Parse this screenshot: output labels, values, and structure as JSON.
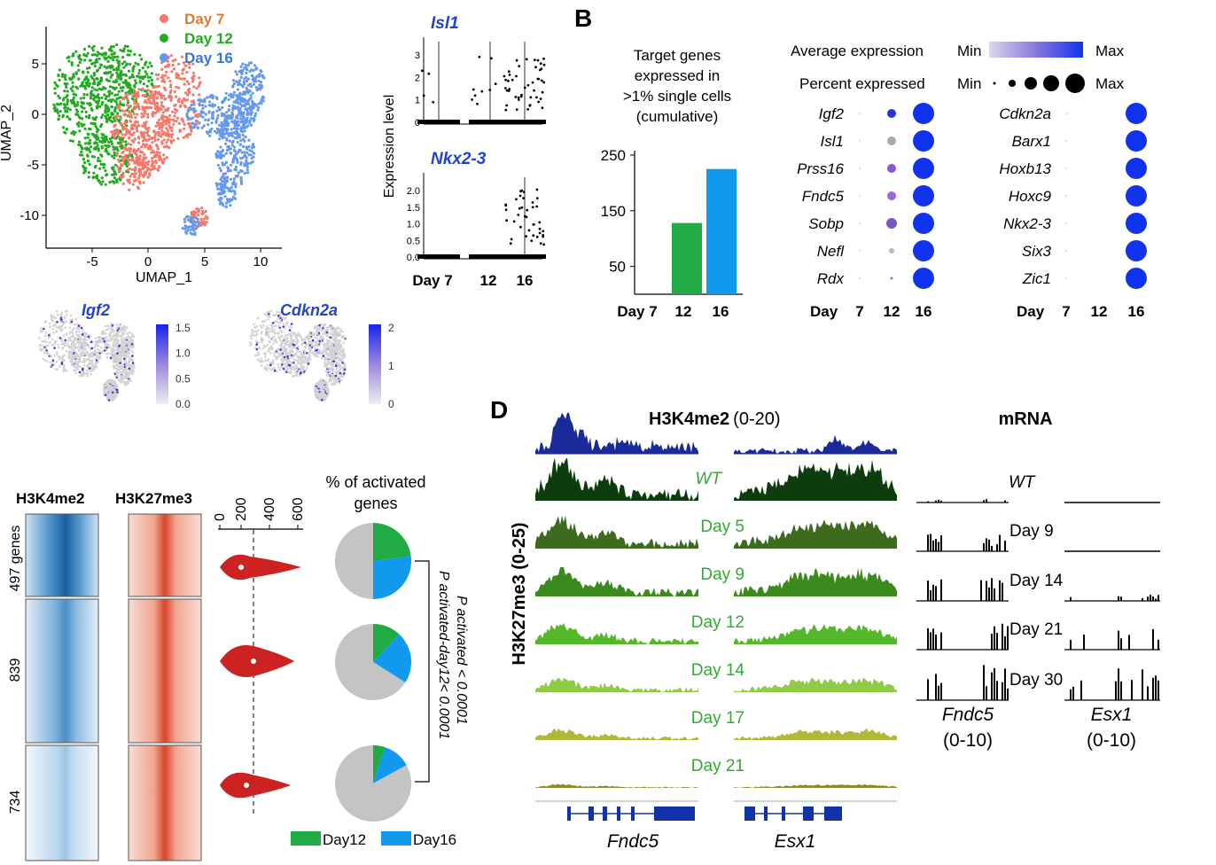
{
  "panels": {
    "b": "B",
    "d": "D"
  },
  "umap": {
    "legend": [
      {
        "label": "Day 7",
        "color": "#f4796b"
      },
      {
        "label": "Day 12",
        "color": "#22aa22"
      },
      {
        "label": "Day 16",
        "color": "#6699ee"
      }
    ],
    "xlabel": "UMAP_1",
    "ylabel": "UMAP_2",
    "xticks": [
      "-5",
      "0",
      "5",
      "10"
    ],
    "yticks": [
      "5",
      "0",
      "-5",
      "-10"
    ]
  },
  "feature_plots": [
    {
      "gene": "Igf2",
      "scale": [
        "1.5",
        "1.0",
        "0.5",
        "0.0"
      ]
    },
    {
      "gene": "Cdkn2a",
      "scale": [
        "2",
        "1",
        "0"
      ]
    }
  ],
  "violin_genes": {
    "ylabel": "Expression level",
    "genes": [
      {
        "name": "Isl1",
        "yticks": [
          "3",
          "2",
          "1",
          "0"
        ]
      },
      {
        "name": "Nkx2-3",
        "yticks": [
          "2.0",
          "1.5",
          "1.0",
          "0.5",
          "0.0"
        ]
      }
    ],
    "xlabels": [
      "Day 7",
      "12",
      "16"
    ]
  },
  "chart_data": {
    "type": "bar",
    "title": "Target genes expressed in >1% single cells (cumulative)",
    "title_lines": [
      "Target genes",
      "expressed in",
      ">1% single cells",
      "(cumulative)"
    ],
    "categories": [
      "Day 7",
      "12",
      "16"
    ],
    "values": [
      0,
      128,
      225
    ],
    "colors": [
      "#22aa44",
      "#22aa44",
      "#1199ee"
    ],
    "yticks": [
      "250",
      "150",
      "50"
    ],
    "ylim": [
      0,
      250
    ]
  },
  "dotplot": {
    "avg_label": "Average expression",
    "pct_label": "Percent expressed",
    "min": "Min",
    "max": "Max",
    "day_label": "Day",
    "days": [
      "7",
      "12",
      "16"
    ],
    "left_genes": [
      "Igf2",
      "Isl1",
      "Prss16",
      "Fndc5",
      "Sobp",
      "Nefl",
      "Rdx"
    ],
    "right_genes": [
      "Cdkn2a",
      "Barx1",
      "Hoxb13",
      "Hoxc9",
      "Nkx2-3",
      "Six3",
      "Zic1"
    ]
  },
  "heatmaps": {
    "h3k4me2": "H3K4me2",
    "h3k27me3": "H3K27me3",
    "clusters": [
      "497 genes",
      "839",
      "734"
    ],
    "violin_ticks": [
      "0",
      "200",
      "400",
      "600"
    ],
    "pie_title_1": "% of activated",
    "pie_title_2": "genes",
    "pval_1": "P activated < 0.0001",
    "pval_2": "P activated-day12< 0.0001",
    "legend": [
      {
        "label": "Day12",
        "color": "#22aa44"
      },
      {
        "label": "Day16",
        "color": "#1199ee"
      }
    ],
    "pies": [
      {
        "day12": 0.23,
        "day16": 0.27
      },
      {
        "day12": 0.12,
        "day16": 0.22
      },
      {
        "day12": 0.05,
        "day16": 0.12
      }
    ]
  },
  "tracks": {
    "h3k4me2_title": "H3K4me2",
    "h3k4me2_range": "(0-20)",
    "h3k27me3_label": "H3K27me3 (0-25)",
    "mrna_title": "mRNA",
    "rows": [
      "WT",
      "Day 5",
      "Day 9",
      "Day 12",
      "Day 14",
      "Day 17",
      "Day 21"
    ],
    "mrna_rows": [
      "WT",
      "Day 9",
      "Day 14",
      "Day 21",
      "Day 30"
    ],
    "genes": [
      "Fndc5",
      "Esx1"
    ],
    "mrna_genes": [
      {
        "name": "Fndc5",
        "range": "(0-10)"
      },
      {
        "name": "Esx1",
        "range": "(0-10)"
      }
    ],
    "colors": [
      "#0d3d0d",
      "#3d6b1e",
      "#3a8a1e",
      "#55b82a",
      "#8fcb44",
      "#b0b83a",
      "#8a8a2a"
    ]
  }
}
